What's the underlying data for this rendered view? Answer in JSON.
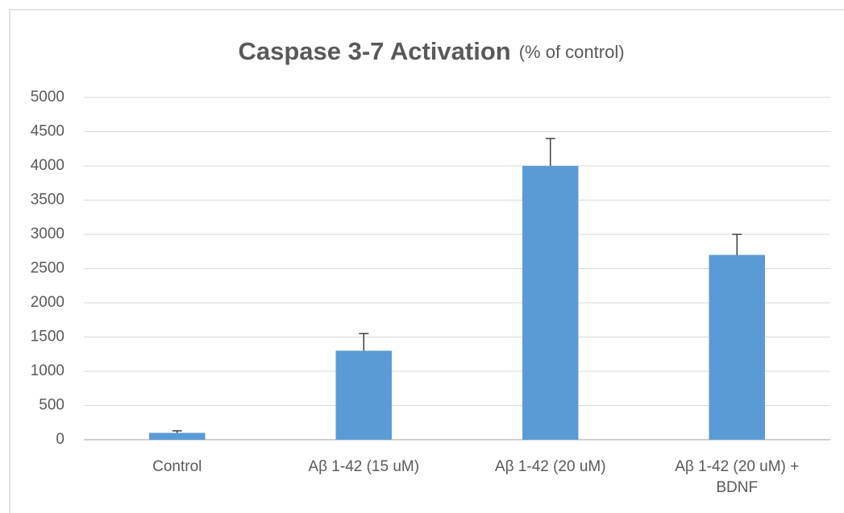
{
  "chart_data": {
    "type": "bar",
    "title": "Caspase 3-7 Activation",
    "subtitle": "(% of control)",
    "categories": [
      "Control",
      "Aβ 1-42 (15 uM)",
      "Aβ 1-42 (20 uM)",
      "Aβ 1-42 (20 uM) + BDNF"
    ],
    "values": [
      100,
      1300,
      4000,
      2700
    ],
    "errors": [
      30,
      250,
      400,
      300
    ],
    "color": "#5b9bd5",
    "ylim": [
      0,
      5000
    ],
    "yticks": [
      0,
      500,
      1000,
      1500,
      2000,
      2500,
      3000,
      3500,
      4000,
      4500,
      5000
    ],
    "grid": true
  }
}
